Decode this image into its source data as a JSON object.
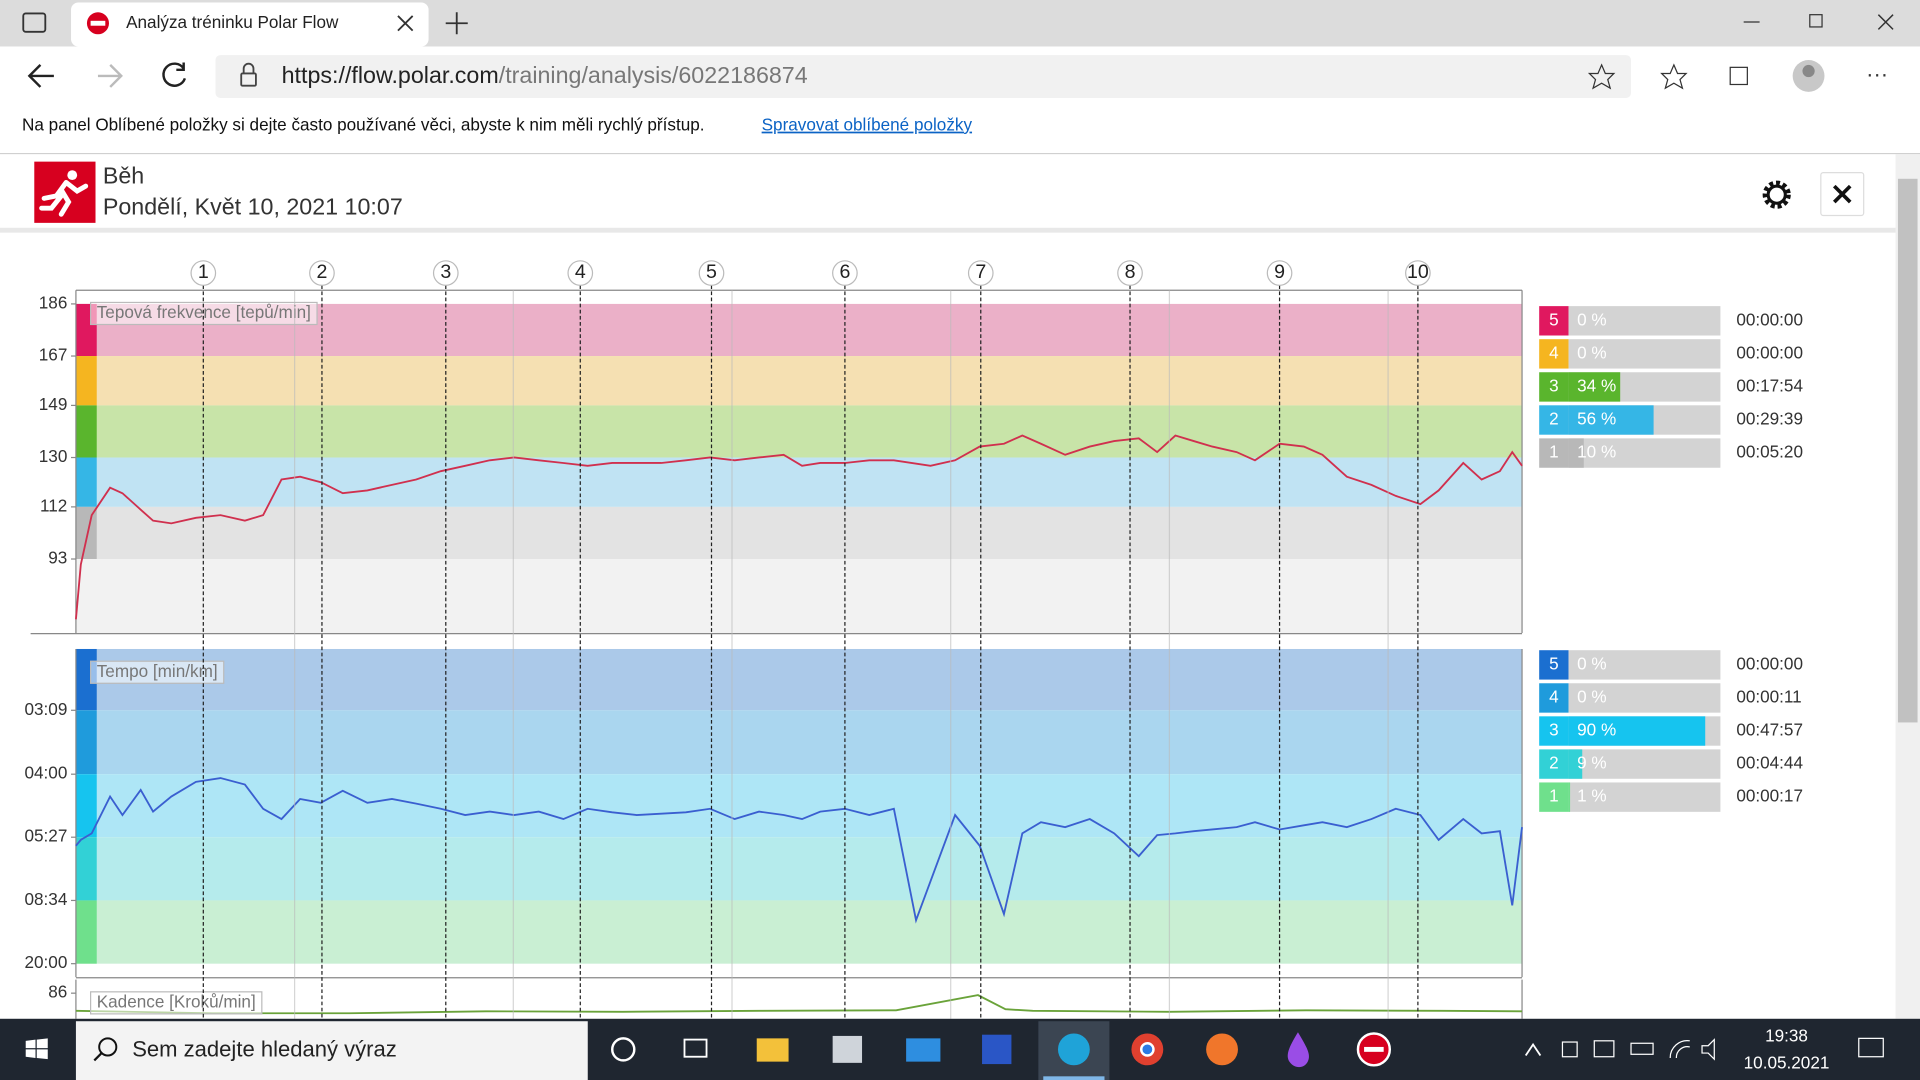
{
  "browser": {
    "tab_title": "Analýza tréninku Polar Flow",
    "url_host": "https://flow.polar.com",
    "url_path": "/training/analysis/6022186874",
    "favorites_bar_text": "Na panel Oblíbené položky si dejte často používané věci, abyste k nim měli rychlý přístup.",
    "favorites_link": "Spravovat oblíbené položky"
  },
  "header": {
    "sport": "Běh",
    "date": "Pondělí, Květ 10, 2021 10:07"
  },
  "x_axis": {
    "xlim": [
      0,
      52.9
    ],
    "xticks": [
      {
        "value": 4.66,
        "label": "1"
      },
      {
        "value": 9.0,
        "label": "2"
      },
      {
        "value": 13.53,
        "label": "3"
      },
      {
        "value": 18.45,
        "label": "4"
      },
      {
        "value": 23.25,
        "label": "5"
      },
      {
        "value": 28.13,
        "label": "6"
      },
      {
        "value": 33.1,
        "label": "7"
      },
      {
        "value": 38.56,
        "label": "8"
      },
      {
        "value": 44.03,
        "label": "9"
      },
      {
        "value": 49.09,
        "label": "10"
      }
    ],
    "minor_xticks": [
      8,
      16,
      24,
      32,
      40,
      48
    ]
  },
  "chart_data": [
    {
      "type": "line",
      "ylabel": "Tepová frekvence [tepů/min]",
      "ylim": [
        66,
        191
      ],
      "yticks": [
        186,
        167,
        149,
        130,
        112,
        93
      ],
      "zone_bands": "between_ticks",
      "zone_band_colors": [
        "#ebb0c8",
        "#f5e0b2",
        "#c8e4a8",
        "#c0e3f3",
        "#e3e3e3"
      ],
      "below_band_color": "#f2f2f2",
      "x": [
        0,
        0.18,
        0.58,
        1.25,
        1.7,
        2.37,
        2.82,
        3.49,
        4.39,
        5.29,
        6.18,
        6.85,
        7.52,
        8.2,
        8.96,
        9.76,
        10.66,
        11.56,
        12.45,
        13.35,
        14.24,
        15.14,
        16.03,
        16.93,
        17.83,
        18.72,
        19.62,
        20.51,
        21.41,
        22.31,
        23.2,
        24.1,
        24.99,
        25.89,
        26.56,
        27.23,
        28.13,
        29.02,
        29.92,
        31.26,
        32.16,
        33.06,
        33.95,
        34.62,
        35.3,
        36.19,
        37.09,
        37.98,
        38.88,
        39.55,
        40.22,
        40.89,
        41.57,
        42.46,
        43.13,
        44.03,
        44.92,
        45.6,
        46.49,
        47.39,
        48.28,
        49.18,
        49.85,
        50.75,
        51.42,
        52.09,
        52.54,
        52.9
      ],
      "series": [
        {
          "color": "#d0304e",
          "values": [
            71,
            91,
            109,
            119,
            117,
            111,
            107,
            106,
            108,
            109,
            107,
            109,
            122,
            123,
            121,
            117,
            118,
            120,
            122,
            125,
            127,
            129,
            130,
            129,
            128,
            127,
            128,
            128,
            128,
            129,
            130,
            129,
            130,
            131,
            127,
            128,
            128,
            129,
            129,
            127,
            129,
            134,
            135,
            138,
            135,
            131,
            134,
            136,
            137,
            132,
            138,
            136,
            134,
            132,
            129,
            135,
            134,
            131,
            123,
            120,
            116,
            113,
            118,
            128,
            122,
            125,
            132,
            127
          ]
        }
      ]
    },
    {
      "type": "line",
      "ylabel": "Tempo [min/km]",
      "yscale": "reciprocal",
      "ylim": [
        1200,
        157
      ],
      "yticks": [
        {
          "value": 189,
          "label": "03:09"
        },
        {
          "value": 240,
          "label": "04:00"
        },
        {
          "value": 327,
          "label": "05:27"
        },
        {
          "value": 514,
          "label": "08:34"
        },
        {
          "value": 1200,
          "label": "20:00"
        }
      ],
      "zone_bands": "above_ticks",
      "zone_band_colors": [
        "#abc9e9",
        "#aad6ef",
        "#aee6f6",
        "#b5ebec",
        "#c9efd3"
      ],
      "x": [
        0,
        0.18,
        0.58,
        1.25,
        1.7,
        2.37,
        2.82,
        3.49,
        4.39,
        5.29,
        6.18,
        6.85,
        7.52,
        8.2,
        8.96,
        9.76,
        10.66,
        11.56,
        12.45,
        13.35,
        14.24,
        15.14,
        16.03,
        16.93,
        17.83,
        18.72,
        19.62,
        20.51,
        21.41,
        22.31,
        23.2,
        24.1,
        24.99,
        25.89,
        26.56,
        27.23,
        28.13,
        29.02,
        29.92,
        30.73,
        32.16,
        33.06,
        33.95,
        34.62,
        35.3,
        36.19,
        37.09,
        37.98,
        38.88,
        39.55,
        40.22,
        40.89,
        41.57,
        42.46,
        43.13,
        44.03,
        44.92,
        45.6,
        46.49,
        47.39,
        48.28,
        49.18,
        49.85,
        50.75,
        51.42,
        52.09,
        52.54,
        52.9
      ],
      "series": [
        {
          "color": "#3a5fd0",
          "values": [
            344,
            332,
            320,
            265,
            290,
            257,
            285,
            265,
            248,
            244,
            251,
            281,
            296,
            268,
            273,
            258,
            273,
            268,
            274,
            281,
            290,
            285,
            290,
            285,
            296,
            281,
            286,
            290,
            288,
            286,
            281,
            296,
            285,
            290,
            296,
            285,
            281,
            290,
            281,
            626,
            290,
            344,
            586,
            320,
            301,
            309,
            296,
            320,
            367,
            323,
            320,
            316,
            313,
            309,
            301,
            313,
            306,
            301,
            309,
            296,
            281,
            290,
            332,
            296,
            320,
            316,
            538,
            309
          ]
        }
      ]
    },
    {
      "type": "line",
      "ylabel": "Kadence [Kroků/min]",
      "ylim": [
        40,
        88.7
      ],
      "yticks": [
        86
      ],
      "x": [
        0,
        5,
        10,
        15,
        20,
        25,
        30,
        33,
        34,
        35,
        40,
        45,
        50,
        52.9
      ],
      "series": [
        {
          "color": "#6aa33a",
          "values": [
            82.5,
            82,
            82,
            82.4,
            82.3,
            82.5,
            82.6,
            85.6,
            82.8,
            82.5,
            82.3,
            82.6,
            82.5,
            82.4
          ]
        }
      ]
    }
  ],
  "zones": [
    {
      "labels": [
        "5",
        "4",
        "3",
        "2",
        "1"
      ],
      "colors": [
        "#e0185f",
        "#f5b520",
        "#5ab52d",
        "#35b6e6",
        "#b8b8b8"
      ],
      "values": [
        0,
        0,
        34,
        56,
        10
      ],
      "value_labels": [
        "0 %",
        "0 %",
        "34 %",
        "56 %",
        "10 %"
      ],
      "times": [
        "00:00:00",
        "00:00:00",
        "00:17:54",
        "00:29:39",
        "00:05:20"
      ]
    },
    {
      "labels": [
        "5",
        "4",
        "3",
        "2",
        "1"
      ],
      "colors": [
        "#1b6fd0",
        "#1f9bdc",
        "#16c4ef",
        "#32d1d6",
        "#6fe08c"
      ],
      "values": [
        0,
        0,
        90,
        9,
        1
      ],
      "value_labels": [
        "0 %",
        "0 %",
        "90 %",
        "9 %",
        "1 %"
      ],
      "times": [
        "00:00:00",
        "00:00:11",
        "00:47:57",
        "00:04:44",
        "00:00:17"
      ]
    }
  ],
  "taskbar": {
    "search_placeholder": "Sem zadejte hledaný výraz",
    "time": "19:38",
    "date": "10.05.2021"
  }
}
